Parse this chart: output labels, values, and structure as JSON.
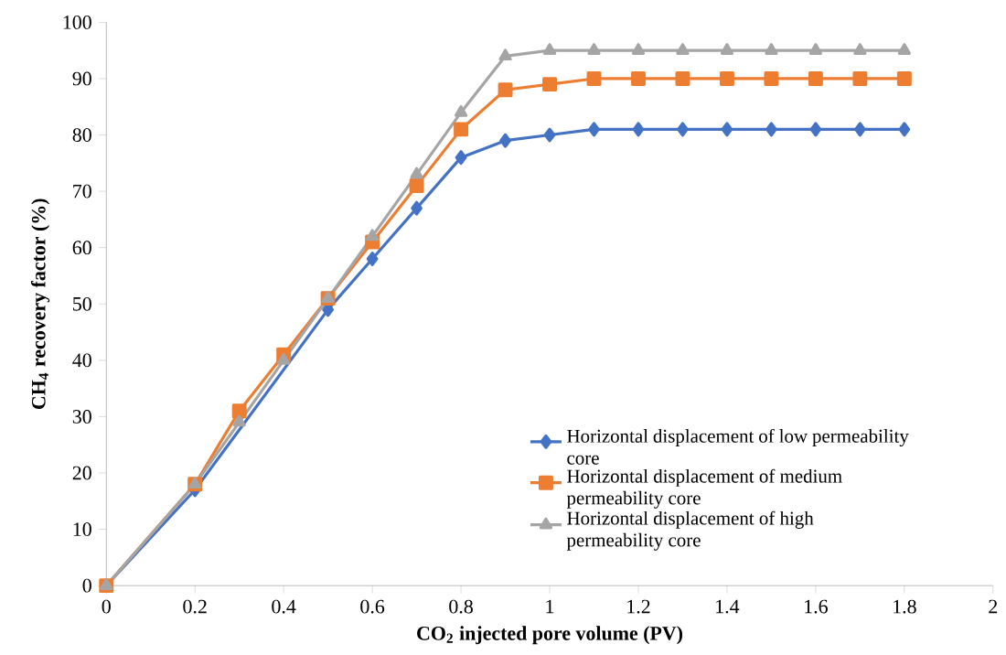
{
  "chart_data": {
    "type": "line",
    "xlabel": "CO$_{2}$ injected pore volume (PV)",
    "ylabel": "CH$_{4}$ recovery factor (%)",
    "x": [
      0,
      0.2,
      0.3,
      0.4,
      0.5,
      0.6,
      0.7,
      0.8,
      0.9,
      1.0,
      1.1,
      1.2,
      1.3,
      1.4,
      1.5,
      1.6,
      1.7,
      1.8
    ],
    "series": [
      {
        "name": "Horizontal displacement of low permeability core",
        "color": "#4472c4",
        "marker": "diamond",
        "values": [
          0,
          17,
          null,
          null,
          49,
          58,
          67,
          76,
          79,
          80,
          81,
          81,
          81,
          81,
          81,
          81,
          81,
          81
        ]
      },
      {
        "name": "Horizontal displacement of medium permeability core",
        "color": "#ed7d31",
        "marker": "square",
        "values": [
          0,
          18,
          31,
          41,
          51,
          61,
          71,
          81,
          88,
          89,
          90,
          90,
          90,
          90,
          90,
          90,
          90,
          90
        ]
      },
      {
        "name": "Horizontal displacement of high permeability core",
        "color": "#a5a5a5",
        "marker": "triangle",
        "values": [
          0,
          18,
          29,
          40,
          51,
          62,
          73,
          84,
          94,
          95,
          95,
          95,
          95,
          95,
          95,
          95,
          95,
          95
        ]
      }
    ],
    "xlim": [
      0,
      2
    ],
    "xticks": [
      0,
      0.2,
      0.4,
      0.6,
      0.8,
      1,
      1.2,
      1.4,
      1.6,
      1.8,
      2
    ],
    "ylim": [
      0,
      100
    ],
    "yticks": [
      0,
      10,
      20,
      30,
      40,
      50,
      60,
      70,
      80,
      90,
      100
    ],
    "grid": false,
    "legend": "right",
    "line_style": "solid"
  }
}
